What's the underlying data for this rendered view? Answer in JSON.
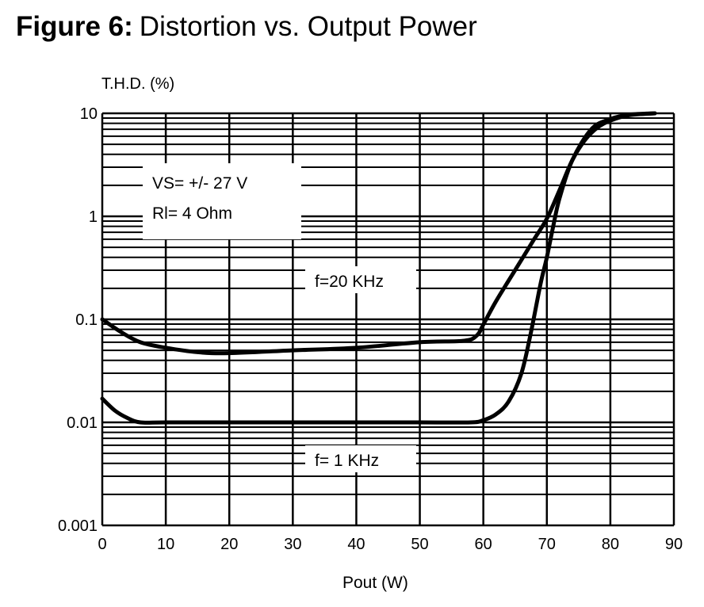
{
  "chart_data": {
    "type": "line",
    "title_prefix": "Figure 6:",
    "title": "Distortion vs. Output Power",
    "xlabel": "Pout  (W)",
    "ylabel": "T.H.D.  (%)",
    "xlim": [
      0,
      90
    ],
    "ylim": [
      0.001,
      10
    ],
    "yscale": "log",
    "grid": true,
    "x_ticks": [
      0,
      10,
      20,
      30,
      40,
      50,
      60,
      70,
      80,
      90
    ],
    "y_ticks": [
      {
        "value": 0.001,
        "label": "0.001"
      },
      {
        "value": 0.01,
        "label": "0.01"
      },
      {
        "value": 0.1,
        "label": "0.1"
      },
      {
        "value": 1,
        "label": "1"
      },
      {
        "value": 10,
        "label": "10"
      }
    ],
    "conditions": [
      "VS=  +/- 27 V",
      "Rl=  4 Ohm"
    ],
    "series": [
      {
        "name": "f=20 KHz",
        "x": [
          0,
          3,
          6,
          10,
          15,
          20,
          30,
          40,
          50,
          57,
          59,
          60,
          62,
          65,
          68,
          70,
          72,
          74,
          76,
          78,
          80,
          83,
          87
        ],
        "y": [
          0.1,
          0.075,
          0.06,
          0.053,
          0.048,
          0.047,
          0.05,
          0.053,
          0.06,
          0.062,
          0.07,
          0.089,
          0.15,
          0.3,
          0.6,
          0.95,
          1.8,
          3.5,
          5.5,
          7.3,
          8.5,
          9.6,
          10
        ]
      },
      {
        "name": "f= 1 KHz",
        "x": [
          0,
          2,
          4,
          6,
          10,
          20,
          30,
          40,
          50,
          58,
          60,
          62,
          64,
          66,
          67.5,
          69,
          70,
          71,
          72,
          74,
          77,
          80,
          83,
          87
        ],
        "y": [
          0.017,
          0.013,
          0.011,
          0.01,
          0.01,
          0.01,
          0.01,
          0.01,
          0.01,
          0.01,
          0.0105,
          0.012,
          0.016,
          0.03,
          0.075,
          0.22,
          0.4,
          0.8,
          1.5,
          3.5,
          7,
          8.8,
          9.7,
          10
        ]
      }
    ]
  }
}
